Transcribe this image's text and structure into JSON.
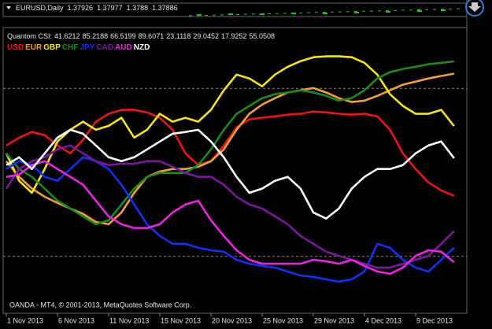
{
  "chart_data": {
    "type": "line",
    "price_panel": {
      "symbol": "EURUSD,Daily",
      "ohlc": [
        1.37926,
        1.37977,
        1.3788,
        1.37886
      ]
    },
    "indicator": "Quantom CSI:",
    "footer": "OANDA - MT4, © 2001-2013, MetaQuotes Software Corp.",
    "categories": [
      "1 Nov 2013",
      null,
      null,
      null,
      "6 Nov 2013",
      null,
      null,
      null,
      "11 Nov 2013",
      null,
      null,
      null,
      "15 Nov 2013",
      null,
      null,
      null,
      "20 Nov 2013",
      null,
      null,
      null,
      "25 Nov 2013",
      null,
      null,
      null,
      "29 Nov 2013",
      null,
      null,
      null,
      "4 Dec 2013",
      null,
      null,
      null,
      "9 Dec 2013",
      null,
      null,
      null
    ],
    "ylim": [
      0,
      100
    ],
    "levels": [
      80,
      20
    ],
    "series": [
      {
        "name": "USD",
        "color": "#e81818",
        "values": [
          59.6,
          62.4,
          64.4,
          63.3,
          59.6,
          56.8,
          61.6,
          68.1,
          70.9,
          72.3,
          72.3,
          71.4,
          69.5,
          65.2,
          56.8,
          52.6,
          54.0,
          59.6,
          66.1,
          68.9,
          69.5,
          70.0,
          70.6,
          70.9,
          71.7,
          71.4,
          70.9,
          70.6,
          70.9,
          70.0,
          65.2,
          56.8,
          51.2,
          46.4,
          43.6,
          41.6212
        ]
      },
      {
        "name": "EUR",
        "color": "#f0a040",
        "values": [
          54.0,
          48.4,
          44.2,
          41.3,
          39.1,
          37.1,
          35.2,
          32.3,
          31.5,
          35.7,
          42.7,
          48.4,
          50.3,
          51.2,
          51.2,
          52.0,
          54.0,
          58.2,
          65.2,
          70.9,
          74.2,
          76.5,
          78.5,
          79.3,
          80.1,
          78.5,
          76.5,
          75.1,
          75.6,
          77.3,
          79.3,
          81.3,
          82.4,
          83.5,
          84.4,
          85.2188
        ]
      },
      {
        "name": "GBP",
        "color": "#f4e428",
        "values": [
          56.8,
          47.0,
          42.7,
          51.2,
          61.0,
          65.2,
          68.1,
          65.2,
          66.6,
          69.5,
          62.4,
          65.2,
          70.9,
          68.1,
          69.5,
          68.1,
          72.3,
          79.3,
          84.9,
          83.5,
          80.7,
          84.9,
          87.7,
          89.7,
          91.1,
          91.4,
          91.4,
          91.1,
          89.1,
          84.9,
          77.9,
          73.7,
          70.9,
          70.9,
          72.3,
          66.5199
        ]
      },
      {
        "name": "CHF",
        "color": "#1e8a1e",
        "values": [
          56.8,
          51.2,
          48.4,
          44.2,
          39.9,
          37.1,
          34.3,
          31.5,
          32.9,
          38.5,
          44.2,
          48.4,
          49.8,
          49.8,
          49.8,
          52.6,
          58.2,
          65.2,
          70.9,
          73.7,
          76.5,
          77.9,
          78.5,
          79.3,
          78.5,
          77.3,
          75.6,
          76.5,
          79.3,
          83.5,
          85.8,
          86.9,
          87.7,
          88.6,
          89.1,
          89.6071
        ]
      },
      {
        "name": "JPY",
        "color": "#1430f0",
        "values": [
          51.2,
          54.0,
          52.6,
          48.4,
          47.0,
          51.2,
          55.4,
          54.0,
          51.2,
          45.6,
          38.5,
          31.5,
          27.3,
          24.5,
          24.5,
          23.1,
          22.2,
          21.7,
          18.8,
          17.4,
          16.6,
          16.0,
          14.6,
          13.2,
          12.7,
          11.8,
          11.0,
          11.8,
          14.6,
          24.5,
          23.1,
          18.8,
          16.0,
          14.6,
          18.8,
          23.1118
        ]
      },
      {
        "name": "CAD",
        "color": "#7a1a9a",
        "values": [
          44.2,
          51.2,
          54.0,
          55.4,
          58.2,
          59.6,
          56.8,
          54.0,
          52.6,
          53.1,
          53.1,
          54.0,
          54.0,
          52.0,
          49.8,
          48.4,
          48.4,
          45.6,
          41.3,
          38.5,
          37.1,
          34.3,
          31.5,
          27.3,
          24.5,
          21.7,
          20.2,
          18.8,
          17.4,
          16.0,
          16.0,
          17.4,
          18.8,
          20.2,
          24.5,
          29.0452
        ]
      },
      {
        "name": "AUD",
        "color": "#e828e0",
        "values": [
          48.4,
          49.2,
          52.6,
          54.0,
          51.2,
          48.4,
          45.6,
          39.9,
          34.3,
          31.5,
          30.1,
          30.1,
          31.5,
          35.7,
          38.5,
          39.9,
          32.9,
          27.3,
          22.2,
          18.8,
          17.4,
          17.4,
          17.4,
          17.4,
          18.8,
          18.3,
          17.4,
          18.8,
          16.6,
          14.6,
          13.8,
          16.0,
          20.2,
          22.2,
          21.7,
          17.9252
        ]
      },
      {
        "name": "NZD",
        "color": "#ffffff",
        "values": [
          52.6,
          55.4,
          51.2,
          56.8,
          62.4,
          65.2,
          63.8,
          59.6,
          55.4,
          54.0,
          55.4,
          58.2,
          61.0,
          63.8,
          64.4,
          65.2,
          61.0,
          55.4,
          48.4,
          42.7,
          44.2,
          47.0,
          48.4,
          44.2,
          35.7,
          33.5,
          37.1,
          44.2,
          48.4,
          51.2,
          51.2,
          52.6,
          56.8,
          59.6,
          61.0,
          55.0508
        ]
      }
    ]
  }
}
